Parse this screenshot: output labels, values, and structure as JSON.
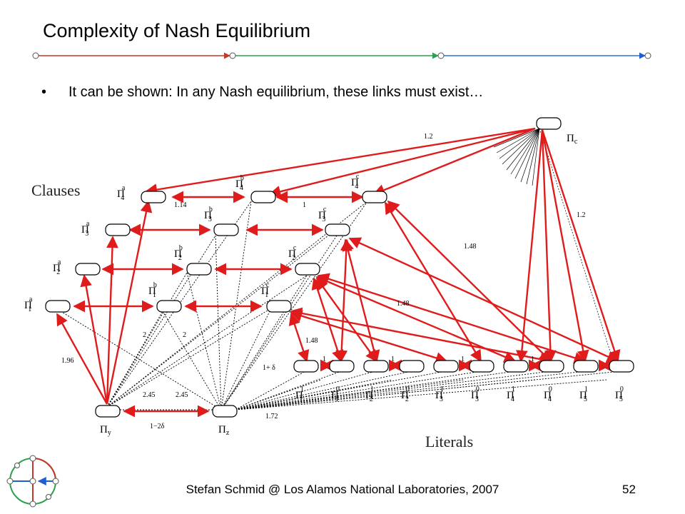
{
  "title": "Complexity of Nash Equilibrium",
  "bullet": {
    "symbol": "•",
    "text": "It can be shown: In any Nash equilibrium, these links must exist…"
  },
  "diagram": {
    "clauses_label": "Clauses",
    "literals_label": "Literals",
    "pi": "Π",
    "sym": {
      "c": "c",
      "y": "y",
      "z": "z",
      "a": "a",
      "b": "b",
      "one": "1",
      "zero": "0"
    },
    "edge_labels": {
      "top": "1.2",
      "right": "1.2",
      "ab4": "1.14",
      "bc4": "1",
      "mid": "1.48",
      "low": "1.48",
      "c1lit": "1.48",
      "lit1": "1",
      "lit2": "1",
      "lit3": "1",
      "lit4": "1",
      "one_delta": "1+ δ",
      "y_a1": "1.96",
      "b1_y": "2",
      "b1_z": "2",
      "y245": "2.45",
      "z245": "2.45",
      "yz": "1−2δ",
      "z172": "1.72"
    },
    "colors": {
      "arrow": "#e01b1b",
      "dashed": "#000000",
      "node": "#ffffff"
    }
  },
  "footer": {
    "text": "Stefan Schmid @ Los Alamos National Laboratories, 2007",
    "page": "52"
  },
  "header_line_colors": [
    "#c0392b",
    "#2e9e4f",
    "#2e6fd8",
    "#1f5fd0"
  ]
}
